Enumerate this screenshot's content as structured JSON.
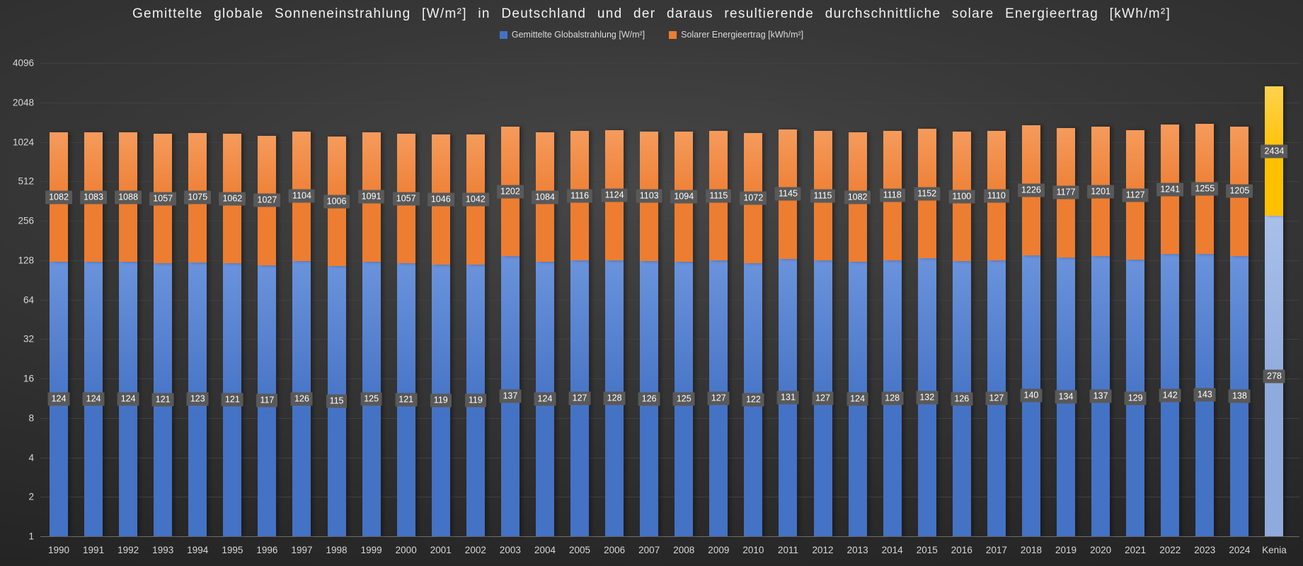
{
  "chart_data": {
    "type": "bar",
    "stacked": true,
    "y_scale": "log2",
    "ylim": [
      1,
      4096
    ],
    "grid": true,
    "legend_position": "top",
    "title": "Gemittelte globale Sonneneinstrahlung [W/m²] in Deutschland und der daraus resultierende durchschnittliche solare Energieertrag [kWh/m²]",
    "y_ticks": [
      "4096",
      "2048",
      "1024",
      "512",
      "256",
      "128",
      "64",
      "32",
      "16",
      "8",
      "4",
      "2",
      "1"
    ],
    "categories": [
      "1990",
      "1991",
      "1992",
      "1993",
      "1994",
      "1995",
      "1996",
      "1997",
      "1998",
      "1999",
      "2000",
      "2001",
      "2002",
      "2003",
      "2004",
      "2005",
      "2006",
      "2007",
      "2008",
      "2009",
      "2010",
      "2011",
      "2012",
      "2013",
      "2014",
      "2015",
      "2016",
      "2017",
      "2018",
      "2019",
      "2020",
      "2021",
      "2022",
      "2023",
      "2024",
      "Kenia"
    ],
    "series": [
      {
        "name": "Gemittelte Globalstrahlung [W/m²]",
        "color": "#4472C4",
        "color_light": "#6b93dc",
        "kenia_color": "#8faadc",
        "kenia_color_light": "#a9c0ea",
        "values": [
          124,
          124,
          124,
          121,
          123,
          121,
          117,
          126,
          115,
          125,
          121,
          119,
          119,
          137,
          124,
          127,
          128,
          126,
          125,
          127,
          122,
          131,
          127,
          124,
          128,
          132,
          126,
          127,
          140,
          134,
          137,
          129,
          142,
          143,
          138,
          278
        ]
      },
      {
        "name": "Solarer Energieertrag [kWh/m²]",
        "color": "#ED7D31",
        "color_light": "#f59b5c",
        "kenia_color": "#ffc000",
        "kenia_color_light": "#ffd24d",
        "values": [
          1082,
          1083,
          1088,
          1057,
          1075,
          1062,
          1027,
          1104,
          1006,
          1091,
          1057,
          1046,
          1042,
          1202,
          1084,
          1116,
          1124,
          1103,
          1094,
          1115,
          1072,
          1145,
          1115,
          1082,
          1118,
          1152,
          1100,
          1110,
          1226,
          1177,
          1201,
          1127,
          1241,
          1255,
          1205,
          2434
        ]
      }
    ],
    "background": "#2e2e2e",
    "label_box_color": "#595959",
    "label_text_color": "#ffffff",
    "axis_text_color": "#d8d8d8"
  }
}
